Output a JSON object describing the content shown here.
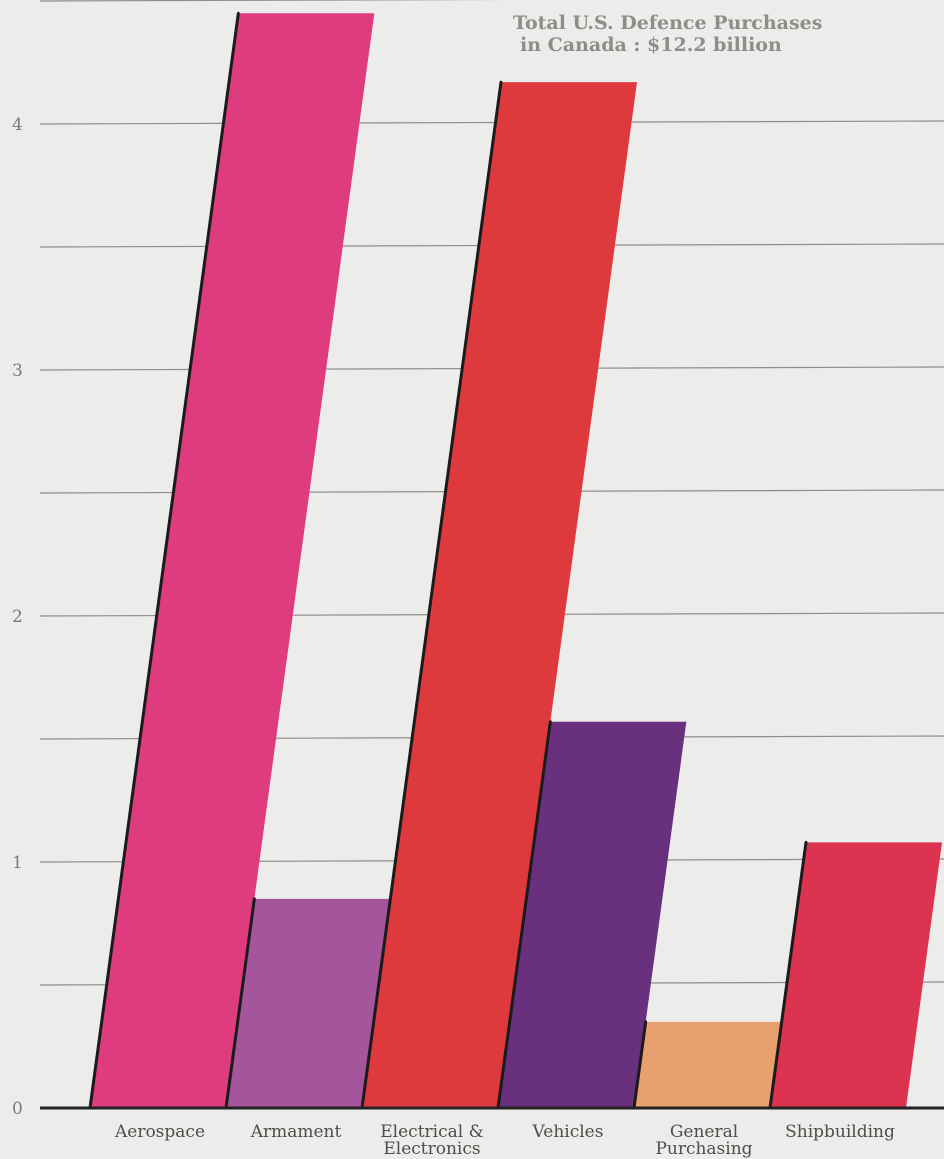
{
  "chart_data": {
    "type": "bar",
    "title": "Total U.S. Defence Purchases",
    "subtitle": "in Canada : $12.2 billion",
    "categories": [
      [
        "Aerospace"
      ],
      [
        "Armament"
      ],
      [
        "Electrical &",
        "Electronics"
      ],
      [
        "Vehicles"
      ],
      [
        "General",
        "Purchasing"
      ],
      [
        "Shipbuilding"
      ]
    ],
    "values": [
      4.45,
      0.85,
      4.17,
      1.57,
      0.35,
      1.08
    ],
    "colors": [
      "#de3c7e",
      "#a5559c",
      "#de3a3e",
      "#69307e",
      "#e8a06e",
      "#dc3350"
    ],
    "yticks": [
      0,
      1,
      2,
      3,
      4
    ],
    "ylim": [
      0,
      4.5
    ],
    "grid": true,
    "grid_step": 0.5,
    "xlabel": "",
    "ylabel": ""
  }
}
